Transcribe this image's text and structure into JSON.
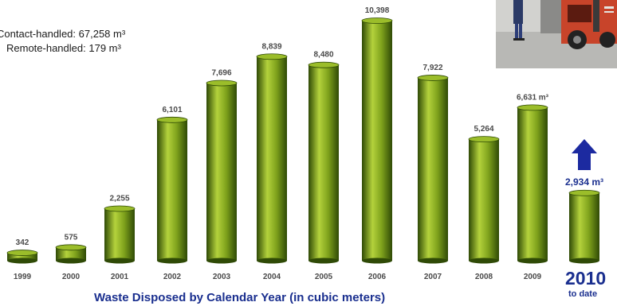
{
  "summary": {
    "contact_label": "Contact-handled:",
    "contact_value": "67,258 m³",
    "remote_label": "Remote-handled:",
    "remote_value": "179 m³"
  },
  "caption": "Waste Disposed by Calendar Year (in cubic meters)",
  "current_year": {
    "year": "2010",
    "note": "to date"
  },
  "colors": {
    "bar_light": "#b4d23c",
    "bar_mid": "#6f9414",
    "bar_dark": "#2f4a06",
    "bar_top": "#9bbd2a",
    "label": "#4a4a4a",
    "highlight": "#1a2f8f",
    "arrow": "#1c2aa0"
  },
  "chart_data": {
    "type": "bar",
    "title": "",
    "xlabel": "",
    "ylabel": "",
    "ylim": [
      0,
      10398
    ],
    "categories": [
      "1999",
      "2000",
      "2001",
      "2002",
      "2003",
      "2004",
      "2005",
      "2006",
      "2007",
      "2008",
      "2009",
      "2010"
    ],
    "values": [
      342,
      575,
      2255,
      6101,
      7696,
      8839,
      8480,
      10398,
      7922,
      5264,
      6631,
      2934
    ],
    "value_labels": [
      "342",
      "575",
      "2,255",
      "6,101",
      "7,696",
      "8,839",
      "8,480",
      "10,398",
      "7,922",
      "5,264",
      "6,631 m³",
      "2,934 m³"
    ],
    "category_labels": [
      "1999",
      "2000",
      "2001",
      "2002",
      "2003",
      "2004",
      "2005",
      "2006",
      "2007",
      "2008",
      "2009",
      ""
    ],
    "grid": false,
    "legend": "none",
    "annotations": [
      "upward arrow above 2010 bar"
    ]
  }
}
